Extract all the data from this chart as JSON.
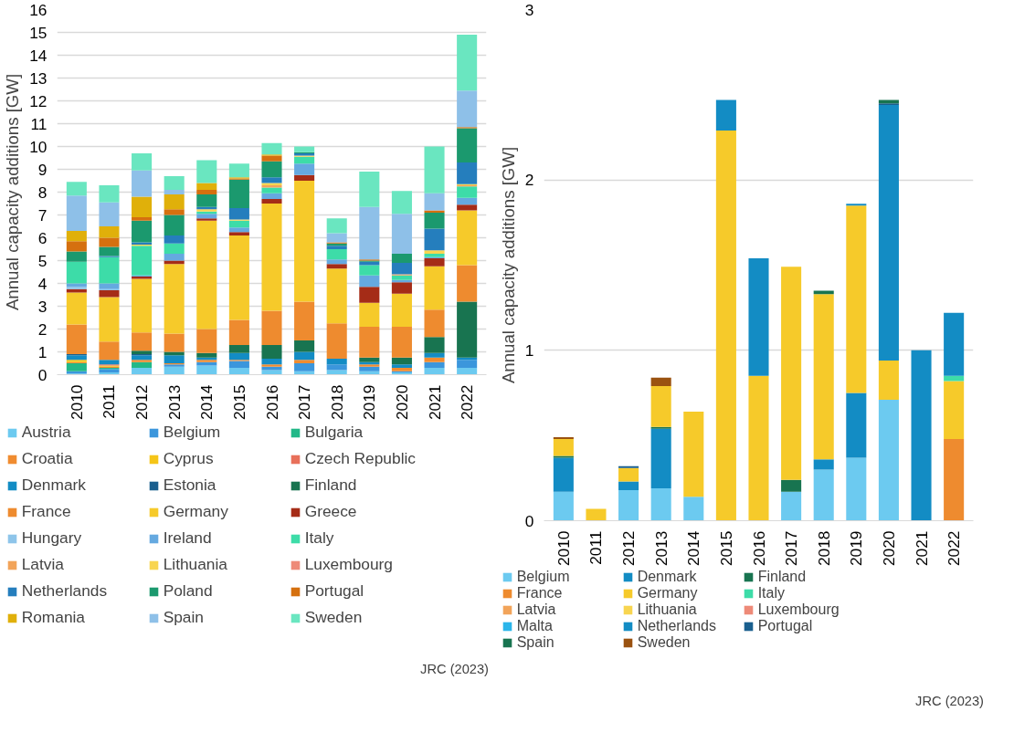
{
  "chart_data": [
    {
      "type": "bar",
      "stacked": true,
      "categories": [
        "2010",
        "2011",
        "2012",
        "2013",
        "2014",
        "2015",
        "2016",
        "2017",
        "2018",
        "2019",
        "2020",
        "2021",
        "2022"
      ],
      "ylabel": "Annual capacity additions [GW]",
      "ylim": [
        0,
        16
      ],
      "yticks": [
        0,
        1,
        2,
        3,
        4,
        5,
        6,
        7,
        8,
        9,
        10,
        11,
        12,
        13,
        14,
        15,
        16
      ],
      "grid": "y",
      "legend": "bottom",
      "annotations": [
        "JRC (2023)"
      ],
      "series": [
        {
          "name": "Austria",
          "color": "#6ccaf0",
          "values": [
            0.05,
            0.1,
            0.3,
            0.35,
            0.4,
            0.3,
            0.2,
            0.15,
            0.2,
            0.15,
            0.1,
            0.3,
            0.3
          ]
        },
        {
          "name": "Belgium",
          "color": "#3b96dc",
          "values": [
            0.1,
            0.15,
            0,
            0.1,
            0.15,
            0.3,
            0.15,
            0.35,
            0.25,
            0.2,
            0.05,
            0.25,
            0.35
          ]
        },
        {
          "name": "Bulgaria",
          "color": "#22b888",
          "values": [
            0.35,
            0.05,
            0.25,
            0,
            0,
            0,
            0,
            0,
            0,
            0,
            0,
            0,
            0
          ]
        },
        {
          "name": "Croatia",
          "color": "#f08c30",
          "values": [
            0.05,
            0.05,
            0.1,
            0.05,
            0.1,
            0.05,
            0.1,
            0.15,
            0,
            0.1,
            0.15,
            0.2,
            0
          ]
        },
        {
          "name": "Cyprus",
          "color": "#f5c518",
          "values": [
            0.1,
            0.05,
            0,
            0,
            0,
            0,
            0,
            0,
            0,
            0,
            0,
            0,
            0
          ]
        },
        {
          "name": "Czech Republic",
          "color": "#e8705a",
          "values": [
            0,
            0.05,
            0,
            0,
            0,
            0,
            0,
            0,
            0,
            0,
            0,
            0,
            0
          ]
        },
        {
          "name": "Denmark",
          "color": "#138cc4",
          "values": [
            0.2,
            0.2,
            0.2,
            0.35,
            0.1,
            0.3,
            0.25,
            0.35,
            0.25,
            0.1,
            0.15,
            0.2,
            0.1
          ]
        },
        {
          "name": "Estonia",
          "color": "#1a5f8e",
          "values": [
            0.05,
            0,
            0.05,
            0,
            0,
            0,
            0,
            0,
            0,
            0,
            0,
            0,
            0
          ]
        },
        {
          "name": "Finland",
          "color": "#187450",
          "values": [
            0,
            0,
            0.15,
            0.15,
            0.2,
            0.35,
            0.6,
            0.5,
            0,
            0.2,
            0.3,
            0.7,
            2.45
          ]
        },
        {
          "name": "France",
          "color": "#ee8b2f",
          "values": [
            1.3,
            0.8,
            0.8,
            0.8,
            1.05,
            1.1,
            1.5,
            1.7,
            1.55,
            1.35,
            1.35,
            1.2,
            1.6
          ]
        },
        {
          "name": "Germany",
          "color": "#f6ca2a",
          "values": [
            1.4,
            1.95,
            2.35,
            3.05,
            4.75,
            3.7,
            4.7,
            5.3,
            2.4,
            1.05,
            1.45,
            1.9,
            2.4
          ]
        },
        {
          "name": "Greece",
          "color": "#a52c17",
          "values": [
            0.15,
            0.3,
            0.1,
            0.15,
            0.1,
            0.15,
            0.2,
            0.25,
            0.2,
            0.7,
            0.5,
            0.35,
            0.25
          ]
        },
        {
          "name": "Hungary",
          "color": "#8ec5ea",
          "values": [
            0.1,
            0.05,
            0,
            0,
            0,
            0,
            0,
            0,
            0,
            0,
            0,
            0,
            0
          ]
        },
        {
          "name": "Ireland",
          "color": "#65a9e0",
          "values": [
            0.15,
            0.25,
            0.05,
            0.3,
            0.2,
            0.2,
            0.25,
            0.5,
            0.2,
            0.5,
            0.1,
            0.05,
            0.3
          ]
        },
        {
          "name": "Italy",
          "color": "#3ddca8",
          "values": [
            0.95,
            1.15,
            1.3,
            0.45,
            0.1,
            0.3,
            0.25,
            0.3,
            0.45,
            0.45,
            0.2,
            0.15,
            0.5
          ]
        },
        {
          "name": "Latvia",
          "color": "#f2a45a",
          "values": [
            0,
            0,
            0,
            0,
            0,
            0,
            0.1,
            0,
            0,
            0,
            0.05,
            0,
            0.05
          ]
        },
        {
          "name": "Lithuania",
          "color": "#f8d550",
          "values": [
            0,
            0,
            0.05,
            0,
            0.1,
            0.05,
            0.1,
            0.05,
            0,
            0,
            0,
            0.15,
            0.05
          ]
        },
        {
          "name": "Luxembourg",
          "color": "#ee8a78",
          "values": [
            0,
            0,
            0,
            0,
            0,
            0,
            0,
            0,
            0,
            0,
            0,
            0,
            0
          ]
        },
        {
          "name": "Netherlands",
          "color": "#257ebd",
          "values": [
            0,
            0.05,
            0.1,
            0.35,
            0.1,
            0.5,
            0.25,
            0.1,
            0.15,
            0.15,
            0.5,
            0.95,
            0.95
          ]
        },
        {
          "name": "Poland",
          "color": "#1b996e",
          "values": [
            0.45,
            0.4,
            0.95,
            0.9,
            0.55,
            1.25,
            0.7,
            0.05,
            0.1,
            0.05,
            0.4,
            0.7,
            1.5
          ]
        },
        {
          "name": "Portugal",
          "color": "#d5700f",
          "values": [
            0.45,
            0.4,
            0.15,
            0.25,
            0.2,
            0.05,
            0.25,
            0,
            0.05,
            0.05,
            0,
            0.1,
            0.05
          ]
        },
        {
          "name": "Romania",
          "color": "#e0b00a",
          "values": [
            0.45,
            0.5,
            0.9,
            0.65,
            0.3,
            0.05,
            0.05,
            0,
            0,
            0,
            0,
            0,
            0
          ]
        },
        {
          "name": "Spain",
          "color": "#8ec0e8",
          "values": [
            1.55,
            1.05,
            1.15,
            0.2,
            0,
            0,
            0,
            0,
            0.4,
            2.3,
            1.75,
            0.75,
            1.6
          ]
        },
        {
          "name": "Sweden",
          "color": "#6ae6c0",
          "values": [
            0.6,
            0.75,
            0.75,
            0.6,
            1.0,
            0.6,
            0.5,
            0.25,
            0.65,
            1.55,
            1.0,
            2.05,
            2.45
          ]
        }
      ]
    },
    {
      "type": "bar",
      "stacked": true,
      "categories": [
        "2010",
        "2011",
        "2012",
        "2013",
        "2014",
        "2015",
        "2016",
        "2017",
        "2018",
        "2019",
        "2020",
        "2021",
        "2022"
      ],
      "ylabel": "Annual capacity additions [GW]",
      "ylim": [
        0,
        3
      ],
      "yticks": [
        0,
        1,
        2,
        3
      ],
      "grid": "y",
      "legend": "bottom",
      "annotations": [
        "JRC (2023)"
      ],
      "series": [
        {
          "name": "Belgium",
          "color": "#6ccaf0",
          "values": [
            0.17,
            0,
            0.18,
            0.19,
            0.14,
            0,
            0,
            0.17,
            0.3,
            0.37,
            0.71,
            0,
            0
          ]
        },
        {
          "name": "Denmark",
          "color": "#138cc4",
          "values": [
            0.2,
            0,
            0.05,
            0.35,
            0,
            0,
            0,
            0,
            0.06,
            0.38,
            0,
            1.0,
            0
          ]
        },
        {
          "name": "Finland",
          "color": "#187450",
          "values": [
            0.01,
            0,
            0,
            0.01,
            0,
            0,
            0,
            0.07,
            0,
            0,
            0,
            0,
            0
          ]
        },
        {
          "name": "France",
          "color": "#ee8b2f",
          "values": [
            0,
            0,
            0,
            0,
            0,
            0,
            0,
            0,
            0,
            0,
            0,
            0,
            0.48
          ]
        },
        {
          "name": "Germany",
          "color": "#f6ca2a",
          "values": [
            0.1,
            0.07,
            0.08,
            0.24,
            0.5,
            2.29,
            0.85,
            1.25,
            0.97,
            1.1,
            0.23,
            0,
            0.34
          ]
        },
        {
          "name": "Italy",
          "color": "#3ddca8",
          "values": [
            0,
            0,
            0,
            0,
            0,
            0,
            0,
            0,
            0,
            0,
            0,
            0,
            0.03
          ]
        },
        {
          "name": "Latvia",
          "color": "#f2a45a",
          "values": [
            0,
            0,
            0,
            0,
            0,
            0,
            0,
            0,
            0,
            0,
            0,
            0,
            0
          ]
        },
        {
          "name": "Lithuania",
          "color": "#f8d550",
          "values": [
            0,
            0,
            0,
            0,
            0,
            0,
            0,
            0,
            0,
            0,
            0,
            0,
            0
          ]
        },
        {
          "name": "Luxembourg",
          "color": "#ee8a78",
          "values": [
            0,
            0,
            0,
            0,
            0,
            0,
            0,
            0,
            0,
            0,
            0,
            0,
            0
          ]
        },
        {
          "name": "Malta",
          "color": "#2bb5ea",
          "values": [
            0,
            0,
            0,
            0,
            0,
            0,
            0,
            0,
            0,
            0,
            0,
            0,
            0
          ]
        },
        {
          "name": "Netherlands",
          "color": "#138cc4",
          "values": [
            0,
            0,
            0,
            0,
            0,
            0.18,
            0.69,
            0,
            0,
            0.01,
            1.5,
            0,
            0.37
          ]
        },
        {
          "name": "Portugal",
          "color": "#1a5f8e",
          "values": [
            0,
            0,
            0.01,
            0,
            0,
            0,
            0,
            0,
            0,
            0,
            0.01,
            0,
            0
          ]
        },
        {
          "name": "Spain",
          "color": "#187450",
          "values": [
            0,
            0,
            0,
            0,
            0,
            0,
            0,
            0,
            0.02,
            0,
            0.02,
            0,
            0
          ]
        },
        {
          "name": "Sweden",
          "color": "#9a5210",
          "values": [
            0.01,
            0,
            0,
            0.05,
            0,
            0,
            0,
            0,
            0,
            0,
            0,
            0,
            0
          ]
        }
      ]
    }
  ]
}
